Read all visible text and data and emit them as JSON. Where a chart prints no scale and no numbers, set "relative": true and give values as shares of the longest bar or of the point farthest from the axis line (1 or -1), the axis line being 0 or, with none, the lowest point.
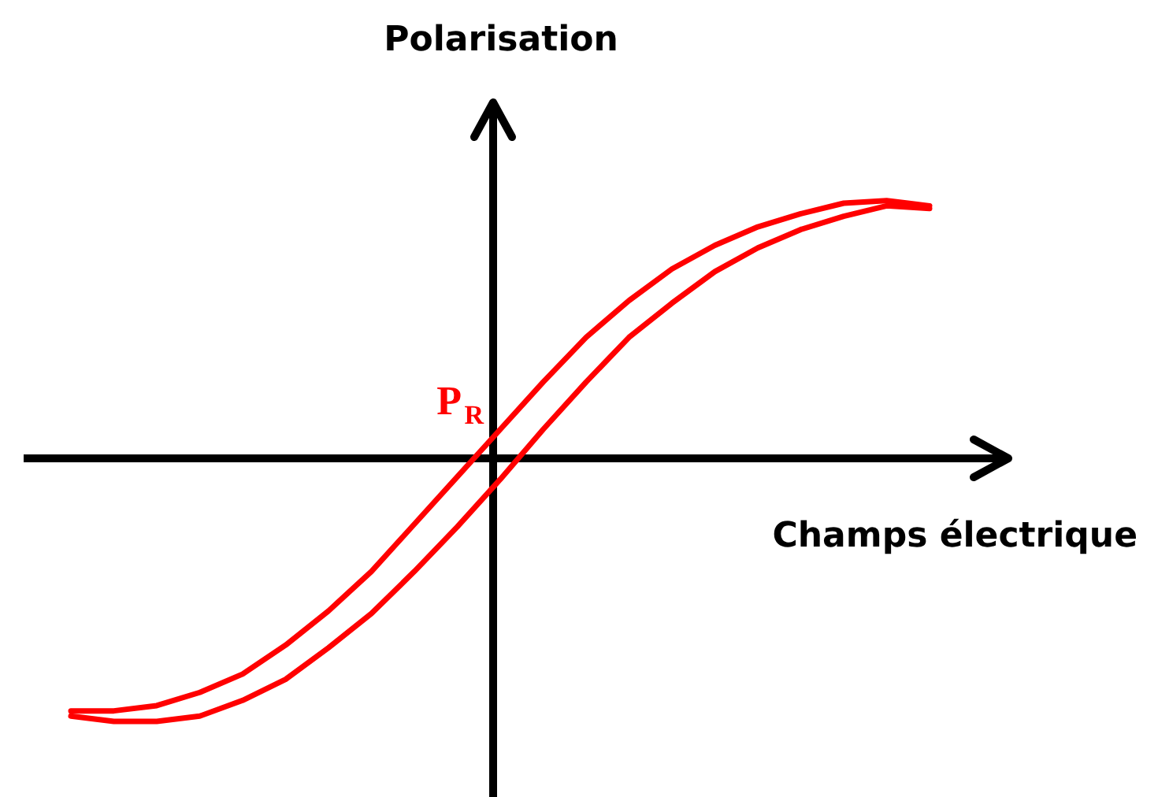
{
  "chart_data": {
    "type": "line",
    "relative": true,
    "xlabel": "Champs électrique",
    "ylabel": "Polarisation",
    "marker": "none",
    "line_style": "solid",
    "annotations": [
      "P$_{R}$"
    ],
    "categories": [
      null,
      null,
      null,
      null,
      null,
      null,
      null,
      null,
      null,
      null,
      null,
      null,
      null,
      null,
      null,
      null,
      null,
      null,
      null,
      null,
      null
    ],
    "series": [
      {
        "color": "#ff0000",
        "values": [
          -0.96,
          -0.96,
          -0.94,
          -0.89,
          -0.82,
          -0.71,
          -0.58,
          -0.43,
          -0.25,
          -0.07,
          0.11,
          0.29,
          0.46,
          0.6,
          0.72,
          0.81,
          0.88,
          0.93,
          0.97,
          0.98,
          0.96
        ]
      },
      {
        "color": "#ff0000",
        "values": [
          -0.98,
          -1.0,
          -1.0,
          -0.98,
          -0.92,
          -0.84,
          -0.72,
          -0.59,
          -0.43,
          -0.26,
          -0.08,
          0.11,
          0.29,
          0.46,
          0.59,
          0.71,
          0.8,
          0.87,
          0.92,
          0.96,
          0.95
        ]
      }
    ]
  }
}
